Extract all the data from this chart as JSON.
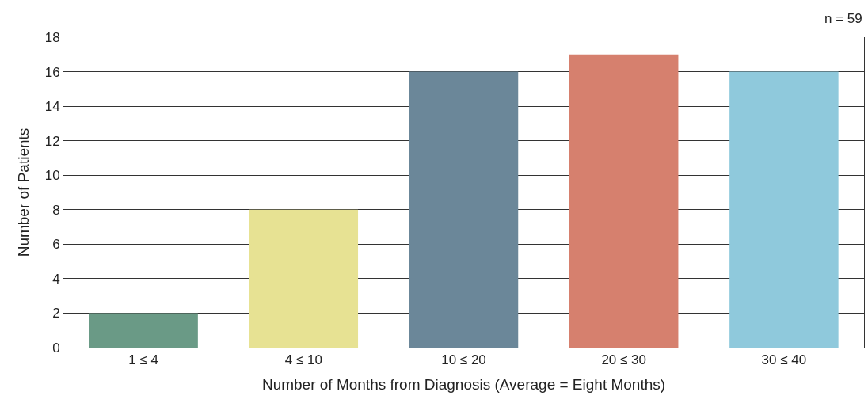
{
  "chart_data": {
    "type": "bar",
    "xlabel": "Number of Months from Diagnosis (Average = Eight Months)",
    "ylabel": "Number of Patients",
    "annotations": [
      "n = 59"
    ],
    "categories": [
      "1 ≤ 4",
      "4 ≤ 10",
      "10 ≤ 20",
      "20 ≤ 30",
      "30 ≤ 40"
    ],
    "values": [
      2,
      8,
      16,
      17,
      16
    ],
    "colors": [
      "#6a9a86",
      "#e7e293",
      "#6b8799",
      "#d6806e",
      "#8fc9dc"
    ],
    "ylim": [
      0,
      18
    ],
    "yticks": [
      0,
      2,
      4,
      6,
      8,
      10,
      12,
      14,
      16,
      18
    ],
    "grid": "y"
  }
}
